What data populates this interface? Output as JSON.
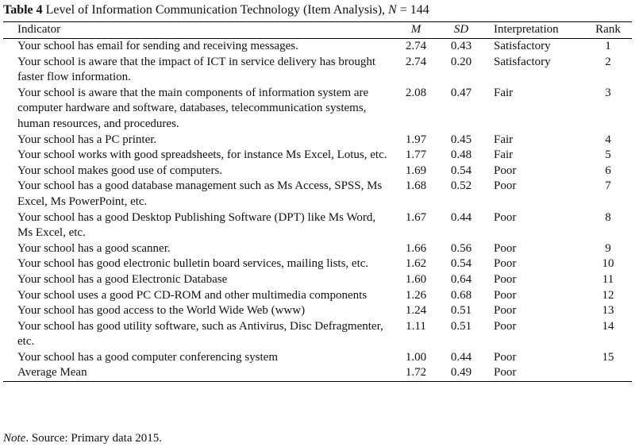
{
  "caption": {
    "label": "Table 4",
    "title": "Level of Information Communication Technology (Item Analysis),",
    "n_symbol": "N",
    "n_value": "= 144"
  },
  "columns": {
    "indicator": "Indicator",
    "m": "M",
    "sd": "SD",
    "interpretation": "Interpretation",
    "rank": "Rank"
  },
  "rows": [
    {
      "indicator": "Your school has email for sending and receiving messages.",
      "m": "2.74",
      "sd": "0.43",
      "interpretation": "Satisfactory",
      "rank": "1"
    },
    {
      "indicator": "Your school is aware that the impact of ICT in service delivery has brought faster flow information.",
      "m": "2.74",
      "sd": "0.20",
      "interpretation": "Satisfactory",
      "rank": "2"
    },
    {
      "indicator": "Your school is aware that the main components of information system are computer hardware and software, databases, telecommunication systems, human resources, and procedures.",
      "m": "2.08",
      "sd": "0.47",
      "interpretation": "Fair",
      "rank": "3"
    },
    {
      "indicator": "Your school has a PC printer.",
      "m": "1.97",
      "sd": "0.45",
      "interpretation": "Fair",
      "rank": "4"
    },
    {
      "indicator": "Your school works with good spreadsheets, for instance Ms Excel, Lotus, etc.",
      "m": "1.77",
      "sd": "0.48",
      "interpretation": "Fair",
      "rank": "5"
    },
    {
      "indicator": "Your school makes good use of computers.",
      "m": "1.69",
      "sd": "0.54",
      "interpretation": "Poor",
      "rank": "6"
    },
    {
      "indicator": "Your school has a good database management such as Ms Access, SPSS, Ms Excel, Ms PowerPoint, etc.",
      "m": "1.68",
      "sd": "0.52",
      "interpretation": "Poor",
      "rank": "7"
    },
    {
      "indicator": "Your school has a good Desktop Publishing Software (DPT) like Ms Word, Ms Excel, etc.",
      "m": "1.67",
      "sd": "0.44",
      "interpretation": "Poor",
      "rank": "8"
    },
    {
      "indicator": "Your school has a good scanner.",
      "m": "1.66",
      "sd": "0.56",
      "interpretation": "Poor",
      "rank": "9"
    },
    {
      "indicator": "Your school has good electronic bulletin board services, mailing lists, etc.",
      "m": "1.62",
      "sd": "0.54",
      "interpretation": "Poor",
      "rank": "10"
    },
    {
      "indicator": "Your school has a good Electronic Database",
      "m": "1.60",
      "sd": "0.64",
      "interpretation": "Poor",
      "rank": "11"
    },
    {
      "indicator": "Your school uses a good PC CD-ROM and other multimedia components",
      "m": "1.26",
      "sd": "0.68",
      "interpretation": "Poor",
      "rank": "12"
    },
    {
      "indicator": "Your school has good access to the World Wide Web (www)",
      "m": "1.24",
      "sd": "0.51",
      "interpretation": "Poor",
      "rank": "13"
    },
    {
      "indicator": "Your school has good utility software, such as Antivirus, Disc Defragmenter, etc.",
      "m": "1.11",
      "sd": "0.51",
      "interpretation": "Poor",
      "rank": "14"
    },
    {
      "indicator": "Your school has a good computer conferencing system",
      "m": "1.00",
      "sd": "0.44",
      "interpretation": "Poor",
      "rank": "15"
    },
    {
      "indicator": "Average Mean",
      "m": "1.72",
      "sd": "0.49",
      "interpretation": "Poor",
      "rank": ""
    }
  ],
  "note": {
    "label": "Note",
    "text": ". Source: Primary data 2015."
  }
}
